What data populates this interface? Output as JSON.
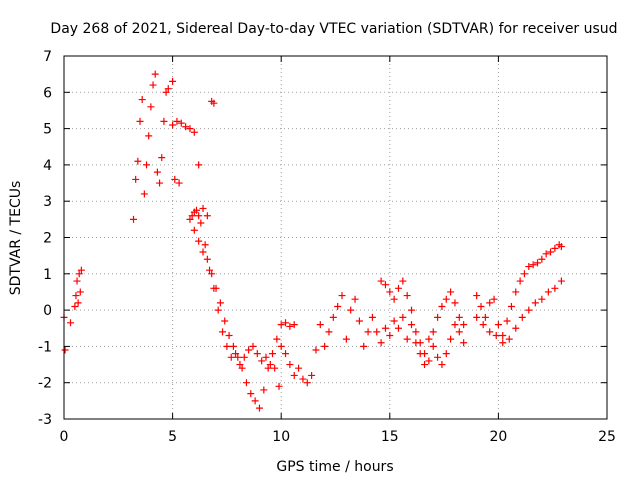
{
  "chart_data": {
    "type": "scatter",
    "title": "Day 268 of 2021, Sidereal Day-to-day VTEC variation (SDTVAR) for receiver usud",
    "xlabel": "GPS time / hours",
    "ylabel": "SDTVAR / TECUs",
    "xlim": [
      0,
      25
    ],
    "ylim": [
      -3,
      7
    ],
    "xticks": [
      0,
      5,
      10,
      15,
      20,
      25
    ],
    "yticks": [
      -3,
      -2,
      -1,
      0,
      1,
      2,
      3,
      4,
      5,
      6,
      7
    ],
    "xtick_labels": [
      "0",
      "5",
      "10",
      "15",
      "20",
      "25"
    ],
    "ytick_labels": [
      "-3",
      "-2",
      "-1",
      "0",
      "1",
      "2",
      "3",
      "4",
      "5",
      "6",
      "7"
    ],
    "grid": true,
    "marker": "+",
    "marker_color": "#ff0000",
    "series": [
      {
        "name": "SDTVAR",
        "x": [
          0.0,
          0.05,
          0.3,
          0.5,
          0.55,
          0.6,
          0.65,
          0.7,
          0.75,
          0.8,
          3.2,
          3.3,
          3.4,
          3.5,
          3.6,
          3.7,
          3.8,
          3.9,
          4.0,
          4.1,
          4.2,
          4.3,
          4.4,
          4.5,
          4.6,
          4.7,
          4.8,
          5.0,
          5.1,
          5.3,
          5.0,
          5.2,
          5.4,
          5.6,
          5.8,
          6.0,
          6.2,
          6.4,
          6.6,
          6.8,
          6.9,
          5.8,
          5.9,
          6.0,
          6.1,
          6.2,
          6.3,
          6.5,
          6.7,
          6.9,
          7.1,
          7.3,
          7.5,
          7.7,
          7.9,
          8.1,
          8.3,
          8.5,
          8.7,
          8.9,
          9.1,
          9.3,
          9.5,
          9.7,
          9.9,
          6.0,
          6.2,
          6.4,
          6.6,
          6.8,
          7.0,
          7.2,
          7.4,
          7.6,
          7.8,
          8.0,
          8.2,
          8.4,
          8.6,
          8.8,
          9.0,
          9.2,
          9.4,
          9.6,
          9.8,
          10.0,
          10.2,
          10.4,
          10.6,
          10.8,
          11.0,
          11.2,
          11.4,
          11.6,
          11.8,
          10.0,
          10.2,
          10.4,
          10.6,
          12.0,
          12.2,
          12.4,
          12.6,
          12.8,
          13.0,
          13.2,
          13.4,
          13.6,
          13.8,
          14.0,
          14.2,
          14.4,
          14.6,
          14.8,
          15.0,
          15.2,
          15.4,
          15.6,
          15.8,
          16.0,
          16.2,
          16.4,
          16.6,
          16.8,
          17.0,
          17.2,
          17.4,
          17.6,
          17.8,
          18.0,
          18.2,
          18.4,
          14.6,
          14.8,
          15.0,
          15.2,
          15.4,
          15.6,
          15.8,
          16.0,
          16.2,
          16.4,
          16.6,
          16.8,
          17.0,
          17.2,
          17.4,
          17.6,
          17.8,
          18.0,
          18.2,
          18.4,
          19.0,
          19.2,
          19.4,
          19.6,
          19.8,
          20.0,
          20.2,
          20.4,
          20.6,
          20.8,
          21.0,
          21.2,
          21.4,
          21.6,
          21.8,
          22.0,
          22.2,
          22.4,
          22.6,
          22.8,
          22.9,
          19.0,
          19.3,
          19.6,
          19.9,
          20.2,
          20.5,
          20.8,
          21.1,
          21.4,
          21.7,
          22.0,
          22.3,
          22.6,
          22.9
        ],
        "y": [
          -0.2,
          -1.1,
          -0.35,
          0.1,
          0.4,
          0.8,
          0.2,
          1.0,
          0.5,
          1.1,
          2.5,
          3.6,
          4.1,
          5.2,
          5.8,
          3.2,
          4.0,
          4.8,
          5.6,
          6.2,
          6.5,
          3.8,
          3.5,
          4.2,
          5.2,
          6.0,
          6.1,
          6.3,
          3.6,
          3.5,
          5.1,
          5.2,
          5.15,
          5.05,
          5.0,
          4.9,
          4.0,
          2.8,
          2.6,
          5.75,
          5.7,
          2.5,
          2.6,
          2.7,
          2.75,
          2.6,
          2.4,
          1.8,
          1.1,
          0.6,
          0.0,
          -0.6,
          -1.0,
          -1.3,
          -1.2,
          -1.5,
          -1.3,
          -1.1,
          -1.0,
          -1.2,
          -1.4,
          -1.3,
          -1.5,
          -1.6,
          -2.1,
          2.2,
          1.9,
          1.6,
          1.4,
          1.0,
          0.6,
          0.2,
          -0.3,
          -0.7,
          -1.0,
          -1.3,
          -1.6,
          -2.0,
          -2.3,
          -2.5,
          -2.7,
          -2.2,
          -1.6,
          -1.2,
          -0.8,
          -1.0,
          -1.2,
          -1.5,
          -1.8,
          -1.6,
          -1.9,
          -2.0,
          -1.8,
          -1.1,
          -0.4,
          -0.4,
          -0.35,
          -0.45,
          -0.4,
          -1.0,
          -0.6,
          -0.2,
          0.1,
          0.4,
          -0.8,
          0.0,
          0.3,
          -0.3,
          -1.0,
          -0.6,
          -0.2,
          -0.6,
          -0.9,
          -0.5,
          -0.7,
          -0.3,
          -0.5,
          -0.2,
          -0.8,
          -0.4,
          -0.9,
          -1.2,
          -1.5,
          -0.8,
          -0.6,
          -0.2,
          0.1,
          0.3,
          0.5,
          0.2,
          -0.2,
          -0.4,
          0.8,
          0.7,
          0.5,
          0.3,
          0.6,
          0.8,
          0.4,
          0.0,
          -0.6,
          -0.9,
          -1.2,
          -1.4,
          -1.0,
          -1.3,
          -1.5,
          -1.2,
          -0.8,
          -0.4,
          -0.6,
          -0.9,
          0.4,
          0.1,
          -0.2,
          0.2,
          0.3,
          -0.4,
          -0.7,
          -0.3,
          0.1,
          0.5,
          0.8,
          1.0,
          1.2,
          1.25,
          1.3,
          1.4,
          1.55,
          1.6,
          1.7,
          1.8,
          1.75,
          -0.2,
          -0.4,
          -0.6,
          -0.7,
          -0.9,
          -0.8,
          -0.5,
          -0.2,
          0.0,
          0.2,
          0.3,
          0.5,
          0.6,
          0.8
        ]
      }
    ]
  }
}
